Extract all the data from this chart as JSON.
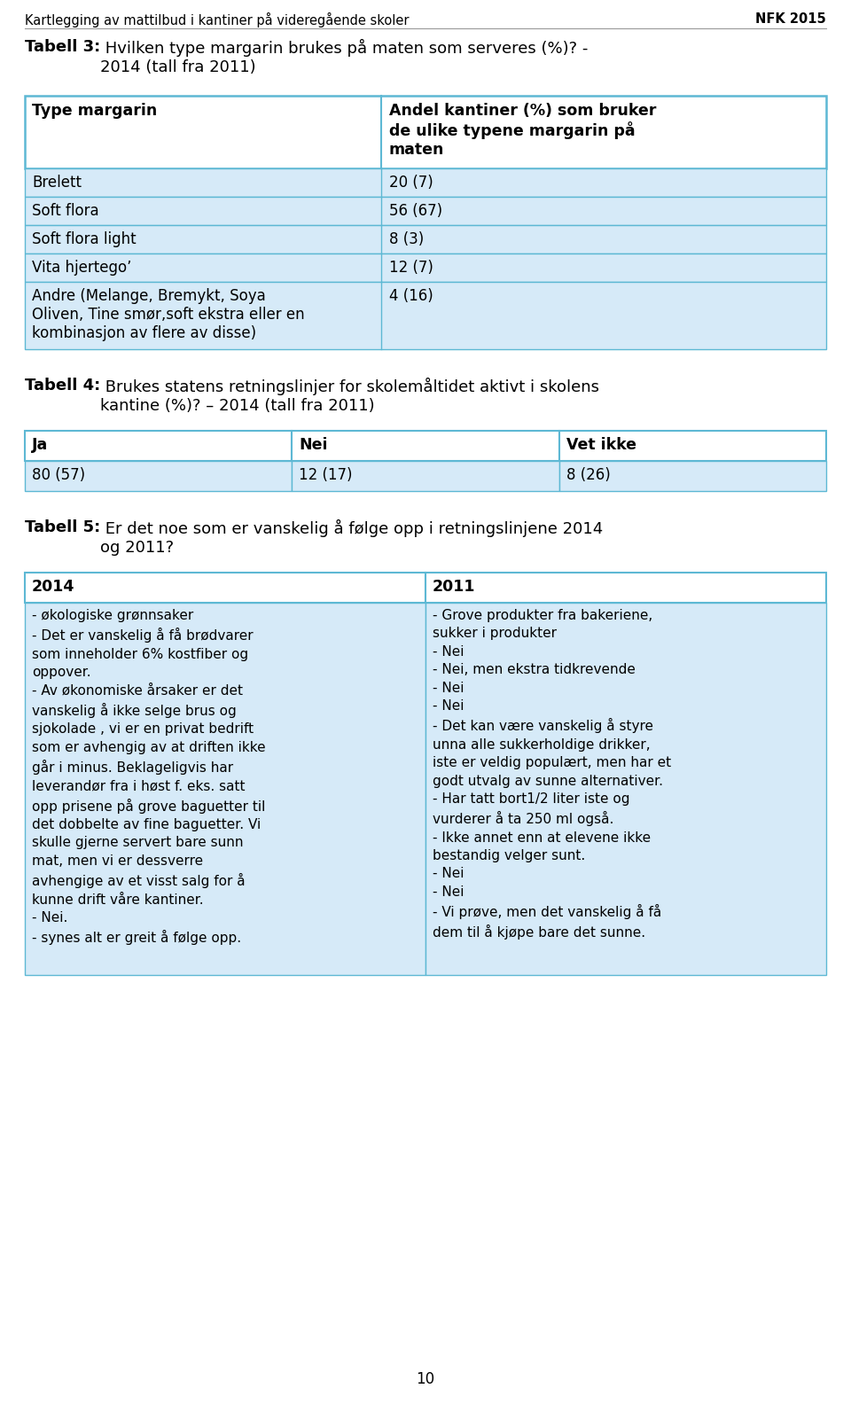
{
  "page_header_left": "Kartlegging av mattilbud i kantiner på videregående skoler",
  "page_header_right": "NFK 2015",
  "page_number": "10",
  "bg_color": "#ffffff",
  "row_bg": "#d6eaf8",
  "white": "#ffffff",
  "border_color": "#5db8d4",
  "text_color": "#000000",
  "table3_title_bold": "Tabell 3:",
  "table3_title_rest": " Hvilken type margarin brukes på maten som serveres (%)? -\n2014 (tall fra 2011)",
  "table3_col1_header": "Type margarin",
  "table3_col2_header": "Andel kantiner (%) som bruker\nde ulike typene margarin på\nmaten",
  "table3_rows": [
    [
      "Brelett",
      "20 (7)"
    ],
    [
      "Soft flora",
      "56 (67)"
    ],
    [
      "Soft flora light",
      "8 (3)"
    ],
    [
      "Vita hjertego’",
      "12 (7)"
    ],
    [
      "Andre (Melange, Bremykt, Soya\nOliven, Tine smør,soft ekstra eller en\nkombinasjon av flere av disse)",
      "4 (16)"
    ]
  ],
  "table4_title_bold": "Tabell 4:",
  "table4_title_rest": " Brukes statens retningslinjer for skolemåltidet aktivt i skolens\nkantine (%)? – 2014 (tall fra 2011)",
  "table4_col_headers": [
    "Ja",
    "Nei",
    "Vet ikke"
  ],
  "table4_row": [
    "80 (57)",
    "12 (17)",
    "8 (26)"
  ],
  "table5_title_bold": "Tabell 5:",
  "table5_title_rest": " Er det noe som er vanskelig å følge opp i retningslinjene 2014\nog 2011?",
  "table5_col1_header": "2014",
  "table5_col2_header": "2011",
  "table5_col1_content": "- økologiske grønnsaker\n- Det er vanskelig å få brødvarer\nsom inneholder 6% kostfiber og\noppover.\n- Av økonomiske årsaker er det\nvanskelig å ikke selge brus og\nsjokolade , vi er en privat bedrift\nsom er avhengig av at driften ikke\ngår i minus. Beklageligvis har\nleverandør fra i høst f. eks. satt\nopp prisene på grove baguetter til\ndet dobbelte av fine baguetter. Vi\nskulle gjerne servert bare sunn\nmat, men vi er dessverre\navhengige av et visst salg for å\nkunne drift våre kantiner.\n- Nei.\n- synes alt er greit å følge opp.",
  "table5_col2_content": "- Grove produkter fra bakeriene,\nsukker i produkter\n- Nei\n- Nei, men ekstra tidkrevende\n- Nei\n- Nei\n- Det kan være vanskelig å styre\nunna alle sukkerholdige drikker,\niste er veldig populært, men har et\ngodt utvalg av sunne alternativer.\n- Har tatt bort1/2 liter iste og\nvurderer å ta 250 ml også.\n- Ikke annet enn at elevene ikke\nbestandig velger sunt.\n- Nei\n- Nei\n- Vi prøve, men det vanskelig å få\ndem til å kjøpe bare det sunne."
}
